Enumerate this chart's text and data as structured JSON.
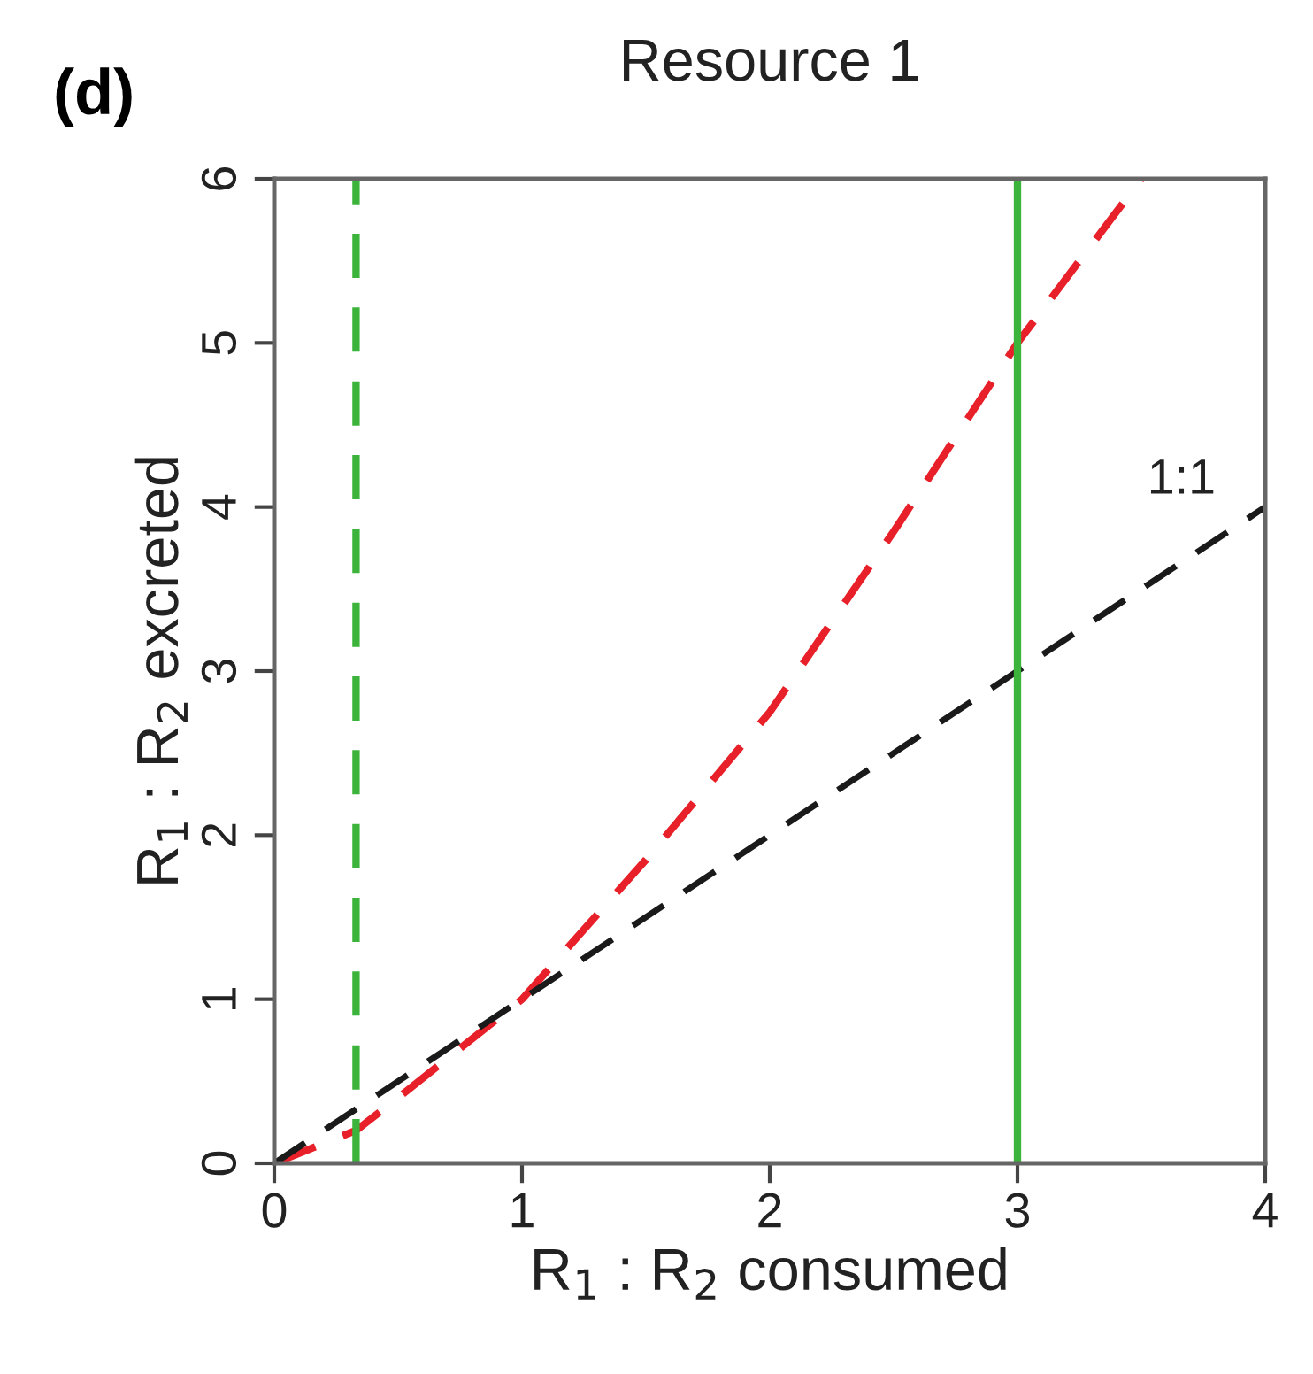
{
  "chart_data": {
    "type": "line",
    "title": "Resource 1",
    "xlabel": "R$_{1}$ : R$_{2}$ consumed",
    "ylabel": "R$_{1}$ : R$_{2}$ excreted",
    "annotations": [
      "(d)"
    ],
    "series": [
      {
        "color": "#e8202a",
        "x": [
          0,
          0.33,
          0.5,
          0.75,
          1,
          1.5,
          2,
          2.5,
          3,
          3.5
        ],
        "values": [
          0,
          0.2,
          0.4,
          0.7,
          1,
          1.85,
          2.75,
          3.85,
          5,
          6
        ],
        "line_style": "dashed"
      },
      {
        "name": "1:1",
        "color": "#1a1a1a",
        "x": [
          0,
          4
        ],
        "values": [
          0,
          4
        ],
        "line_style": "dashed"
      }
    ],
    "ref_lines": [
      {
        "axis": "x",
        "value": 0.33,
        "color": "#3cb43c",
        "line_style": "dashed"
      },
      {
        "axis": "x",
        "value": 3,
        "color": "#3cb43c",
        "line_style": "solid"
      }
    ],
    "xlim": [
      0,
      4
    ],
    "xticks": [
      0,
      1,
      2,
      3,
      4
    ],
    "ylim": [
      0,
      6
    ],
    "yticks": [
      0,
      1,
      2,
      3,
      4,
      5,
      6
    ],
    "grid": false,
    "legend": false
  }
}
